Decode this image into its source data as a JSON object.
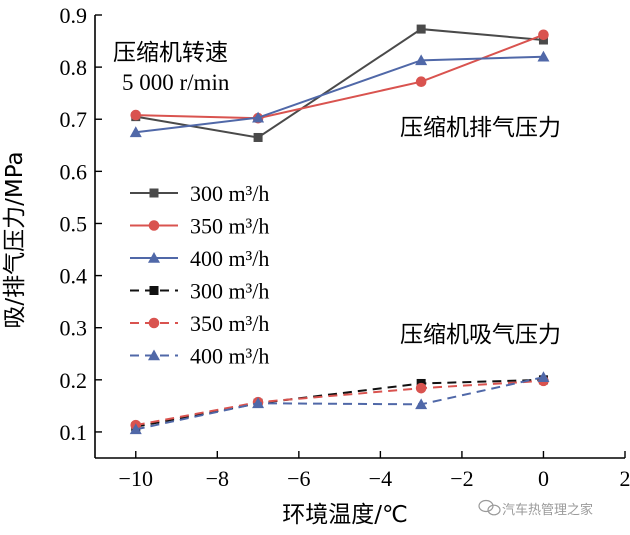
{
  "chart_data": {
    "type": "line",
    "xlabel": "环境温度/℃",
    "ylabel": "吸/排气压力/MPa",
    "xlim": [
      -11,
      2
    ],
    "ylim": [
      0.05,
      0.9
    ],
    "xticks": [
      -10,
      -8,
      -6,
      -4,
      -2,
      0,
      2
    ],
    "xtick_labels": [
      "−10",
      "−8",
      "−6",
      "−4",
      "−2",
      "0",
      "2"
    ],
    "yticks": [
      0.1,
      0.2,
      0.3,
      0.4,
      0.5,
      0.6,
      0.7,
      0.8,
      0.9
    ],
    "ytick_labels": [
      "0.1",
      "0.2",
      "0.3",
      "0.4",
      "0.5",
      "0.6",
      "0.7",
      "0.8",
      "0.9"
    ],
    "grid": false,
    "legend_position": "left-middle",
    "annotations": {
      "condition_title": "压缩机转速",
      "condition_speed": "5 000 r/min",
      "discharge_label": "压缩机排气压力",
      "suction_label": "压缩机吸气压力"
    },
    "series": [
      {
        "name": "300 m³/h",
        "group": "discharge",
        "color": "#4a4a4a",
        "marker": "square",
        "dash": "solid",
        "x": [
          -10,
          -7,
          -3,
          0
        ],
        "y": [
          0.705,
          0.665,
          0.873,
          0.852
        ]
      },
      {
        "name": "350 m³/h",
        "group": "discharge",
        "color": "#d9534f",
        "marker": "circle",
        "dash": "solid",
        "x": [
          -10,
          -7,
          -3,
          0
        ],
        "y": [
          0.708,
          0.702,
          0.772,
          0.862
        ]
      },
      {
        "name": "400 m³/h",
        "group": "discharge",
        "color": "#5068a8",
        "marker": "triangle",
        "dash": "solid",
        "x": [
          -10,
          -7,
          -3,
          0
        ],
        "y": [
          0.675,
          0.703,
          0.813,
          0.82
        ]
      },
      {
        "name": "300 m³/h",
        "group": "suction",
        "color": "#111111",
        "marker": "square",
        "dash": "dashed",
        "x": [
          -10,
          -7,
          -3,
          0
        ],
        "y": [
          0.11,
          0.155,
          0.193,
          0.2
        ]
      },
      {
        "name": "350 m³/h",
        "group": "suction",
        "color": "#d9534f",
        "marker": "circle",
        "dash": "dashed",
        "x": [
          -10,
          -7,
          -3,
          0
        ],
        "y": [
          0.113,
          0.157,
          0.184,
          0.198
        ]
      },
      {
        "name": "400 m³/h",
        "group": "suction",
        "color": "#5068a8",
        "marker": "triangle",
        "dash": "dashed",
        "x": [
          -10,
          -7,
          -3,
          0
        ],
        "y": [
          0.105,
          0.155,
          0.153,
          0.205
        ]
      }
    ]
  },
  "watermark": {
    "text": "汽车热管理之家",
    "icon": "wechat-icon"
  }
}
